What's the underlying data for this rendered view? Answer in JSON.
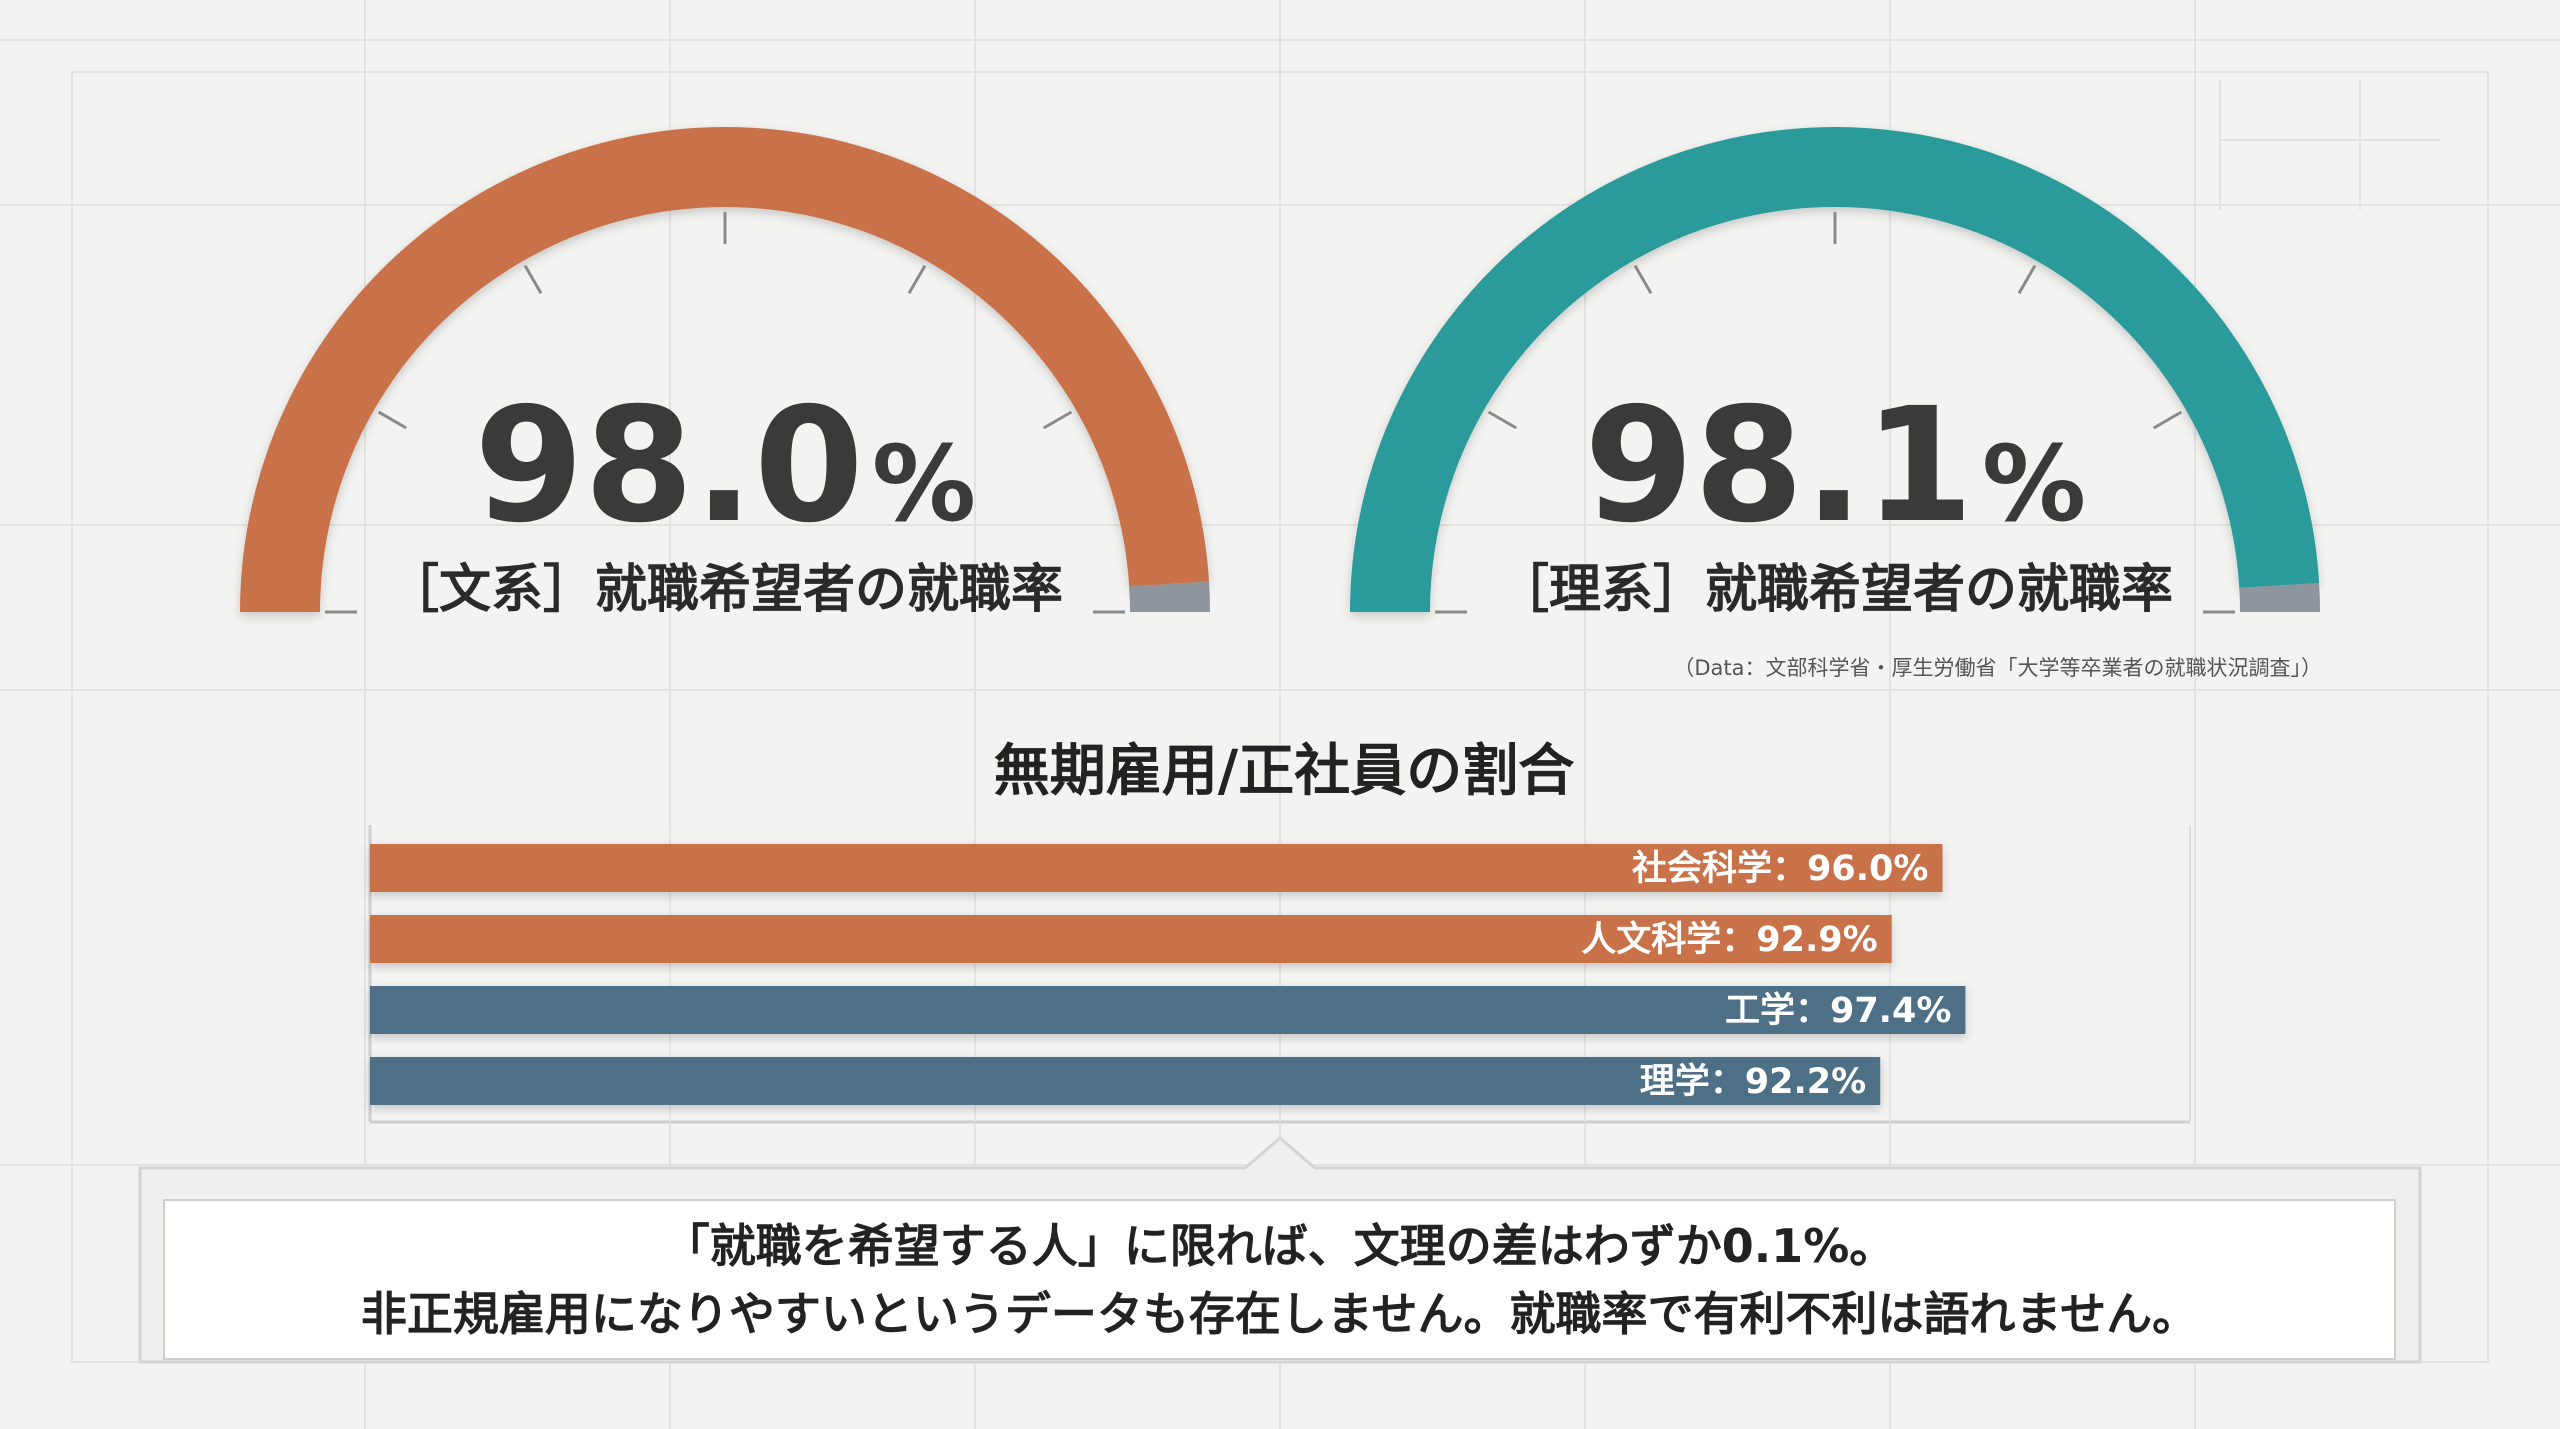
{
  "source_note": "（Data：文部科学省・厚生労働省「大学等卒業者の就職状況調査」）",
  "chart_data": [
    {
      "type": "gauge",
      "value": 98.0,
      "value_label": "98.0",
      "unit": "%",
      "label": "［文系］就職希望者の就職率",
      "max": 100,
      "color": "#c9714a"
    },
    {
      "type": "gauge",
      "value": 98.1,
      "value_label": "98.1",
      "unit": "%",
      "label": "［理系］就職希望者の就職率",
      "max": 100,
      "color": "#2a9a9a"
    },
    {
      "type": "bar",
      "orientation": "horizontal",
      "title": "無期雇用/正社員の割合",
      "xlim": [
        0,
        100
      ],
      "bars": [
        {
          "category": "社会科学",
          "value": 96.0,
          "label": "社会科学：96.0%",
          "color": "#c9714a"
        },
        {
          "category": "人文科学",
          "value": 92.9,
          "label": "人文科学：92.9%",
          "color": "#c9714a"
        },
        {
          "category": "工学",
          "value": 97.4,
          "label": "工学：97.4%",
          "color": "#4e6f86"
        },
        {
          "category": "理学",
          "value": 92.2,
          "label": "理学：92.2%",
          "color": "#4e6f86"
        }
      ]
    }
  ],
  "caption": {
    "line1": "「就職を希望する人」に限れば、文理の差はわずか0.1%。",
    "line2": "非正規雇用になりやすいというデータも存在しません。就職率で有利不利は語れません。"
  },
  "colors": {
    "remainder": "#8e959c",
    "text_dark": "#3a3a3a",
    "grid": "#dedede"
  }
}
